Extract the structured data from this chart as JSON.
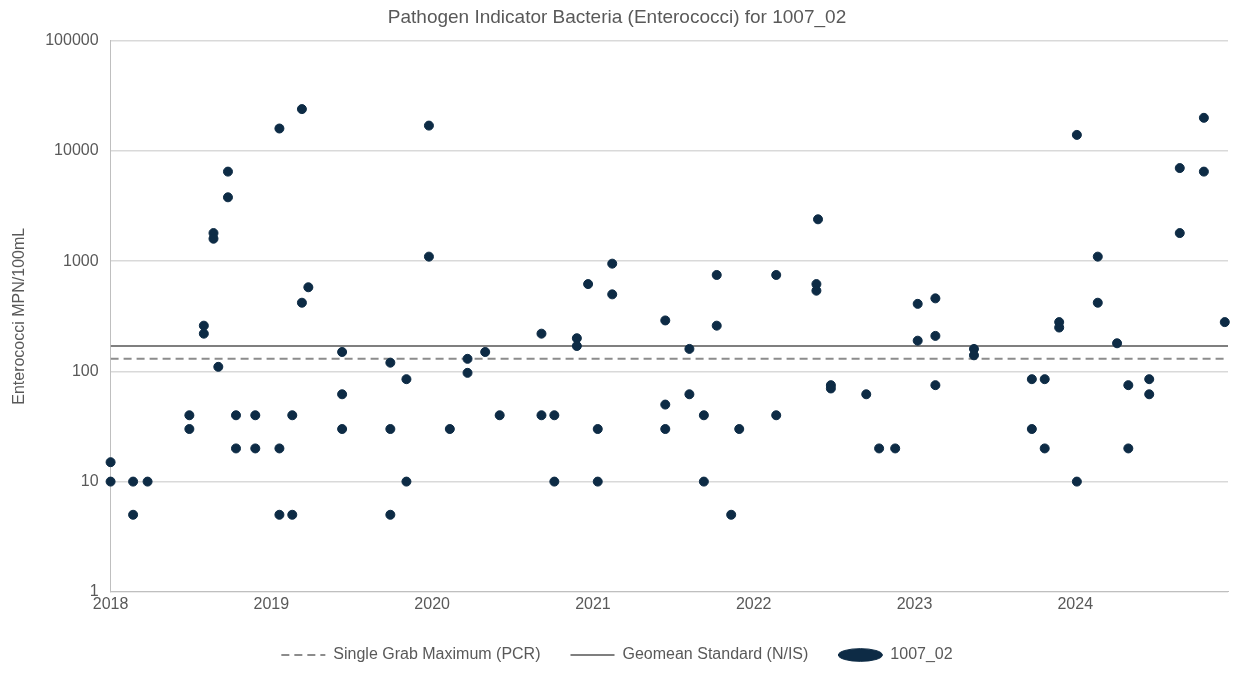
{
  "chart_data": {
    "type": "scatter",
    "title": "Pathogen Indicator Bacteria (Enterococci) for 1007_02",
    "ylabel": "Enterococci MPN/100mL",
    "xlim": [
      2018,
      2024.95
    ],
    "xticks": [
      2018,
      2019,
      2020,
      2021,
      2022,
      2023,
      2024
    ],
    "ylim": [
      1,
      100000
    ],
    "yticks": [
      1,
      10,
      100,
      1000,
      10000,
      100000
    ],
    "log": "y",
    "grid": "y",
    "legend": "bottom",
    "marker": "circle",
    "ref_lines": [
      {
        "axis": "y",
        "value": 130,
        "label": "Single Grab Maximum (PCR)",
        "color": "#8c8c8c",
        "line_style": "dashed"
      },
      {
        "axis": "y",
        "value": 170,
        "label": "Geomean Standard (N/IS)",
        "color": "#7f7f7f",
        "line_style": "solid"
      }
    ],
    "series": [
      {
        "name": "1007_02",
        "color": "#0d2b45",
        "x": [
          2018.0,
          2018.0,
          2018.14,
          2018.14,
          2018.23,
          2018.49,
          2018.49,
          2018.58,
          2018.58,
          2018.64,
          2018.64,
          2018.67,
          2018.73,
          2018.73,
          2018.78,
          2018.78,
          2018.9,
          2018.9,
          2019.05,
          2019.05,
          2019.05,
          2019.13,
          2019.13,
          2019.19,
          2019.19,
          2019.23,
          2019.44,
          2019.44,
          2019.44,
          2019.74,
          2019.74,
          2019.74,
          2019.84,
          2019.84,
          2019.98,
          2019.98,
          2020.11,
          2020.22,
          2020.22,
          2020.33,
          2020.42,
          2020.68,
          2020.68,
          2020.76,
          2020.76,
          2020.9,
          2020.9,
          2020.97,
          2021.03,
          2021.03,
          2021.12,
          2021.12,
          2021.45,
          2021.45,
          2021.45,
          2021.6,
          2021.6,
          2021.69,
          2021.69,
          2021.77,
          2021.77,
          2021.86,
          2021.91,
          2022.14,
          2022.14,
          2022.39,
          2022.39,
          2022.4,
          2022.48,
          2022.48,
          2022.7,
          2022.78,
          2022.88,
          2023.02,
          2023.02,
          2023.13,
          2023.13,
          2023.13,
          2023.37,
          2023.37,
          2023.73,
          2023.73,
          2023.81,
          2023.81,
          2023.9,
          2023.9,
          2024.01,
          2024.01,
          2024.14,
          2024.14,
          2024.26,
          2024.33,
          2024.33,
          2024.46,
          2024.46,
          2024.65,
          2024.65,
          2024.8,
          2024.8,
          2024.93
        ],
        "values": [
          15,
          10,
          10,
          5,
          10,
          40,
          30,
          260,
          220,
          1800,
          1600,
          110,
          6500,
          3800,
          40,
          20,
          40,
          20,
          16000,
          20,
          5,
          40,
          5,
          24000,
          420,
          580,
          150,
          62,
          30,
          120,
          30,
          5,
          85,
          10,
          17000,
          1100,
          30,
          130,
          97,
          150,
          40,
          220,
          40,
          40,
          10,
          200,
          170,
          620,
          30,
          10,
          950,
          500,
          290,
          50,
          30,
          160,
          62,
          40,
          10,
          750,
          260,
          5,
          30,
          750,
          40,
          620,
          540,
          2400,
          75,
          70,
          62,
          20,
          20,
          410,
          190,
          460,
          210,
          75,
          160,
          140,
          85,
          30,
          85,
          20,
          280,
          250,
          14000,
          10,
          1100,
          420,
          180,
          75,
          20,
          85,
          62,
          7000,
          1800,
          20000,
          6500,
          280
        ]
      }
    ]
  }
}
